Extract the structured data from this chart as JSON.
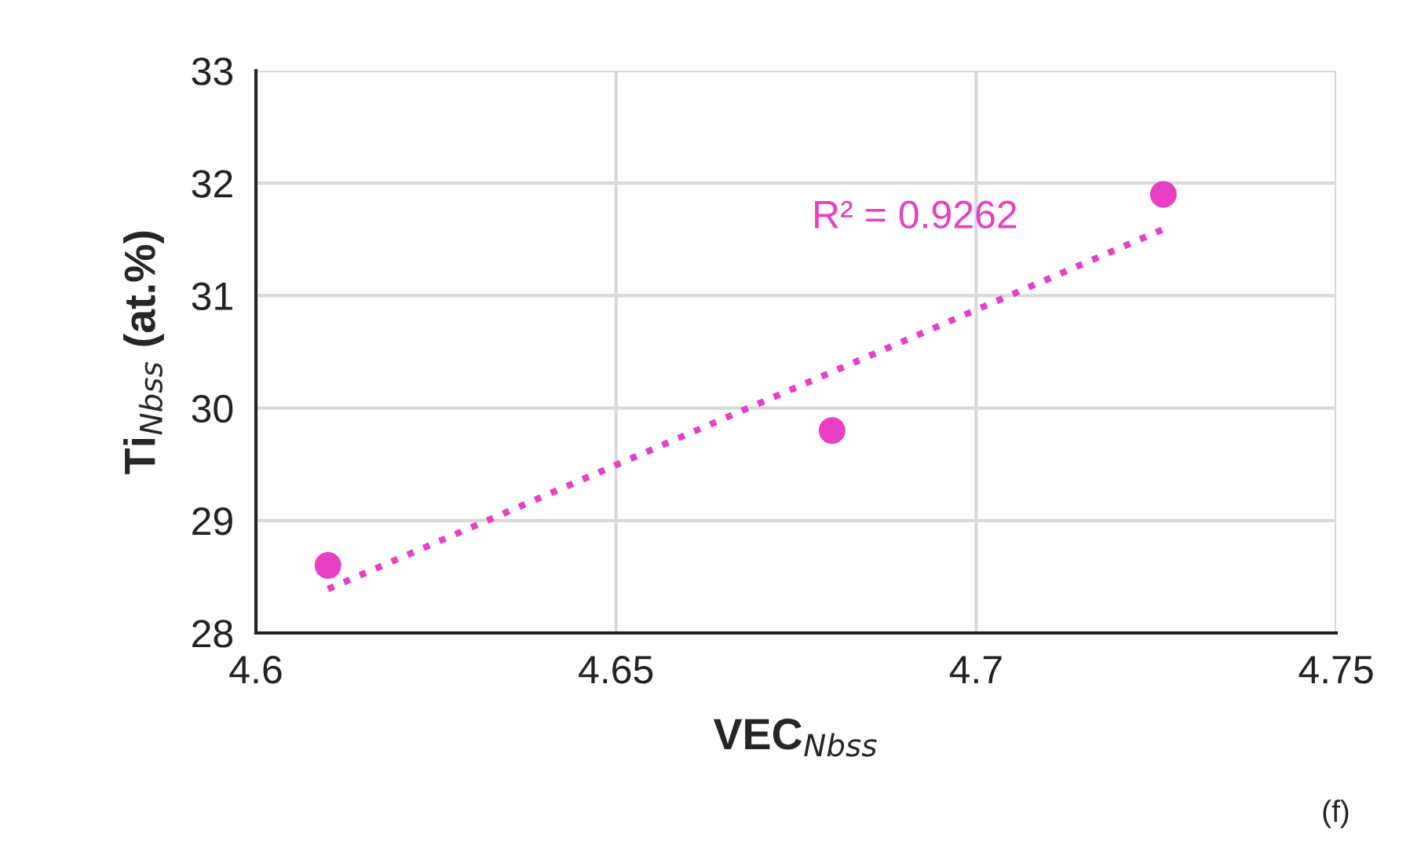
{
  "chart_data": {
    "type": "scatter",
    "xlabel": "VEC$_{Nbss}$",
    "ylabel": "Ti$_{Nbss}$ (at.%)",
    "series": [
      {
        "color": "#e83fc4",
        "x": [
          4.61,
          4.68,
          4.726
        ],
        "values": [
          28.6,
          29.8,
          31.9
        ],
        "marker": "circle"
      },
      {
        "type": "line",
        "color": "#e83fc4",
        "x": [
          4.61,
          4.726
        ],
        "values": [
          28.39,
          31.59
        ],
        "line_style": "dotted"
      }
    ],
    "annotations": [
      "R² = 0.9262",
      "(f)"
    ],
    "xlim": [
      4.6,
      4.75
    ],
    "xticks": [
      4.6,
      4.65,
      4.7,
      4.75
    ],
    "ylim": [
      28,
      33
    ],
    "yticks": [
      28,
      29,
      30,
      31,
      32,
      33
    ],
    "grid": true
  }
}
